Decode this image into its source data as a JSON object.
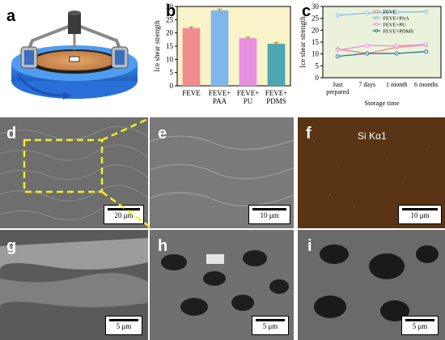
{
  "panels": {
    "a": "a",
    "b": "b",
    "c": "c",
    "d": "d",
    "e": "e",
    "f": "f",
    "g": "g",
    "h": "h",
    "i": "i"
  },
  "scale_bars": {
    "d": "20 μm",
    "e": "10 μm",
    "f": "10 μm",
    "g": "5 μm",
    "h": "5 μm",
    "i": "5 μm"
  },
  "edx_label": "Si Kα1",
  "chart_data": [
    {
      "type": "bar",
      "ylabel": "Ice shear strength",
      "categories": [
        "FEVE",
        "FEVE+\nPAA",
        "FEVE+\nPU",
        "FEVE+\nPDMS"
      ],
      "category_lines": [
        [
          "FEVE"
        ],
        [
          "FEVE+",
          "PAA"
        ],
        [
          "FEVE+",
          "PU"
        ],
        [
          "FEVE+",
          "PDMS"
        ]
      ],
      "values": [
        21.8,
        28.5,
        18.0,
        15.9
      ],
      "errors": [
        0.4,
        0.5,
        0.4,
        0.5
      ],
      "colors": [
        "#f08c8c",
        "#7fb7ea",
        "#e88fe0",
        "#4fa6b3"
      ],
      "ylim": [
        0,
        30
      ],
      "yticks": [
        0,
        5,
        10,
        15,
        20,
        25,
        30
      ],
      "background": "#f8f3c8"
    },
    {
      "type": "line",
      "ylabel": "Ice shear strength",
      "xlabel": "Storage time",
      "categories": [
        "Just prepared",
        "7 days",
        "1 month",
        "6 months"
      ],
      "category_lines": [
        [
          "Just",
          "prepared"
        ],
        [
          "7 days"
        ],
        [
          "1 month"
        ],
        [
          "6 months"
        ]
      ],
      "ylim": [
        0,
        30
      ],
      "yticks": [
        0,
        5,
        10,
        15,
        20,
        25,
        30
      ],
      "background": "#eaf2dc",
      "legend_position": "top-right",
      "series": [
        {
          "name": "FEVE",
          "values": [
            12.0,
            10.2,
            12.8,
            13.8
          ],
          "color": "#f08c8c"
        },
        {
          "name": "FEVE+PAA",
          "values": [
            26.3,
            27.2,
            27.6,
            27.8
          ],
          "color": "#7fb7ea"
        },
        {
          "name": "FEVE+PU",
          "values": [
            11.6,
            13.6,
            13.4,
            14.0
          ],
          "color": "#e88fe0"
        },
        {
          "name": "FEVE+PDMS",
          "values": [
            9.0,
            10.2,
            10.2,
            11.0
          ],
          "color": "#2f6f8f"
        }
      ]
    }
  ]
}
